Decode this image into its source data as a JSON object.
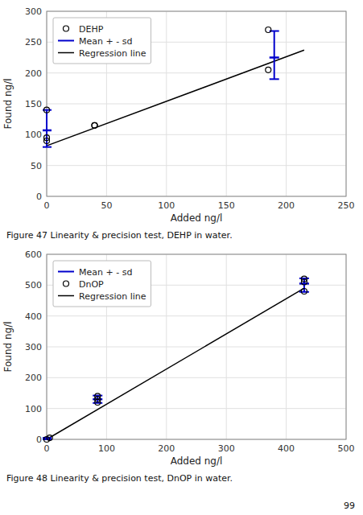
{
  "chart_data": [
    {
      "type": "scatter",
      "caption": "Figure 47 Linearity & precision test, DEHP in water.",
      "xlabel": "Added ng/l",
      "ylabel": "Found ng/l",
      "xlim": [
        0,
        250
      ],
      "ylim": [
        0,
        300
      ],
      "xticks": [
        0,
        50,
        100,
        150,
        200,
        250
      ],
      "yticks": [
        0,
        50,
        100,
        150,
        200,
        250,
        300
      ],
      "grid": true,
      "legend": "upper left",
      "series": [
        {
          "name": "DEHP",
          "type": "scatter",
          "marker": "circle",
          "color": "#000000",
          "x": [
            0,
            0,
            0,
            40,
            40,
            185,
            185
          ],
          "values": [
            95,
            90,
            140,
            115,
            115,
            205,
            270
          ]
        },
        {
          "name": "Mean + - sd",
          "type": "errorbar",
          "color": "#0000cc",
          "x": [
            0,
            190
          ],
          "values": [
            107,
            225
          ],
          "low": [
            80,
            190
          ],
          "high": [
            140,
            268
          ]
        },
        {
          "name": "Regression line",
          "type": "line",
          "line_style": "solid",
          "color": "#000000",
          "x": [
            0,
            215
          ],
          "values": [
            82,
            237
          ]
        }
      ]
    },
    {
      "type": "scatter",
      "caption": "Figure 48 Linearity & precision test, DnOP in water.",
      "xlabel": "Added ng/l",
      "ylabel": "Found ng/l",
      "xlim": [
        0,
        500
      ],
      "ylim": [
        0,
        600
      ],
      "xticks": [
        0,
        100,
        200,
        300,
        400,
        500
      ],
      "yticks": [
        0,
        100,
        200,
        300,
        400,
        500,
        600
      ],
      "grid": true,
      "legend": "upper left",
      "series": [
        {
          "name": "Mean + - sd",
          "type": "errorbar",
          "color": "#0000cc",
          "x": [
            0,
            85,
            430
          ],
          "values": [
            2,
            130,
            505
          ],
          "low": [
            0,
            118,
            478
          ],
          "high": [
            5,
            142,
            522
          ]
        },
        {
          "name": "DnOP",
          "type": "scatter",
          "marker": "circle",
          "color": "#000000",
          "x": [
            0,
            5,
            85,
            85,
            85,
            430,
            430,
            430
          ],
          "values": [
            0,
            5,
            120,
            130,
            140,
            480,
            510,
            520
          ]
        },
        {
          "name": "Regression line",
          "type": "line",
          "line_style": "solid",
          "color": "#000000",
          "x": [
            0,
            430
          ],
          "values": [
            0,
            490
          ]
        }
      ]
    }
  ],
  "page_number": "99"
}
